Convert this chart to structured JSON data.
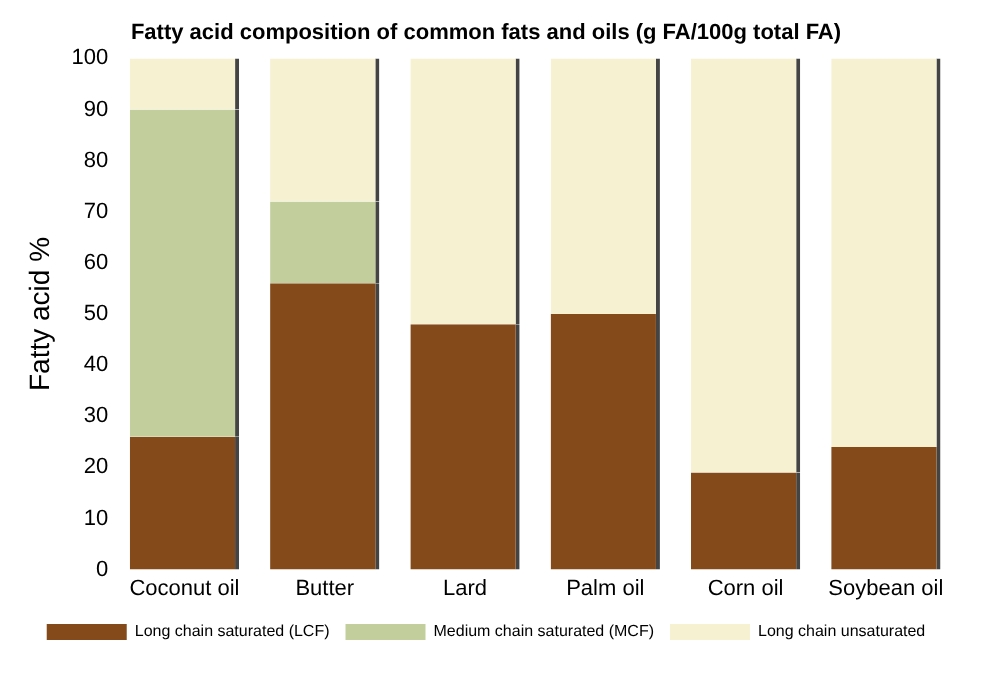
{
  "chart_data": {
    "type": "bar",
    "title": "Fatty acid composition of common fats and oils (g FA/100g total FA)",
    "ylabel": "Fatty acid %",
    "categories": [
      "Coconut oil",
      "Butter",
      "Lard",
      "Palm oil",
      "Corn oil",
      "Soybean oil"
    ],
    "stacked": true,
    "series": [
      {
        "name": "Long chain saturated (LCF)",
        "color": "#844a19",
        "values": [
          26,
          56,
          48,
          50,
          19,
          24
        ]
      },
      {
        "name": "Medium chain saturated (MCF)",
        "color": "#c2cf9c",
        "values": [
          64,
          16,
          0,
          0,
          0,
          0
        ]
      },
      {
        "name": "Long chain unsaturated",
        "color": "#f5f1d1",
        "values": [
          10,
          28,
          52,
          50,
          81,
          76
        ]
      }
    ],
    "ylim": [
      0,
      100
    ],
    "yticks": [
      0,
      10,
      20,
      30,
      40,
      50,
      60,
      70,
      80,
      90,
      100
    ],
    "grid": false,
    "legend": "bottom"
  }
}
